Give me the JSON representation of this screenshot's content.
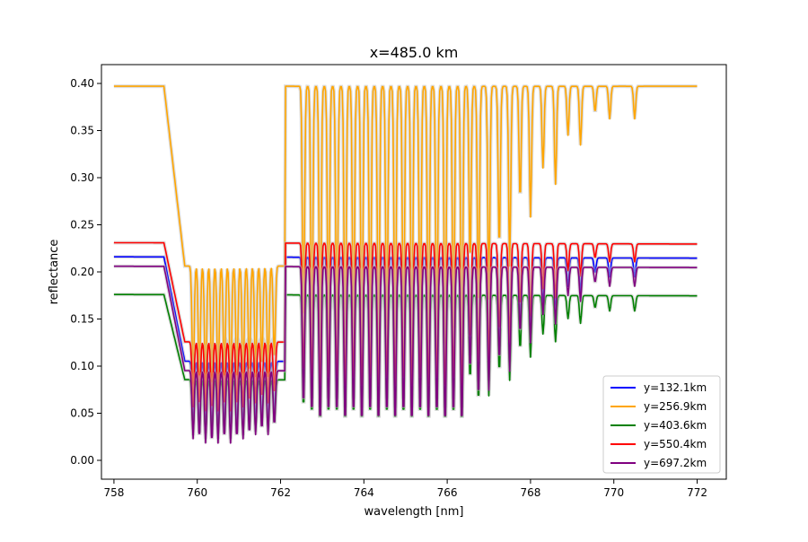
{
  "chart_data": {
    "type": "line",
    "title": "x=485.0 km",
    "xlabel": "wavelength [nm]",
    "ylabel": "reflectance",
    "xlim": [
      757.7,
      772.7
    ],
    "ylim": [
      -0.02,
      0.42
    ],
    "xticks": [
      "758",
      "760",
      "762",
      "764",
      "766",
      "768",
      "770",
      "772"
    ],
    "yticks": [
      "0.00",
      "0.05",
      "0.10",
      "0.15",
      "0.20",
      "0.25",
      "0.30",
      "0.35",
      "0.40"
    ],
    "grid": false,
    "legend_position": "lower right",
    "band_edge": {
      "start": 759.2,
      "end": 759.7
    },
    "absorption_lines": [
      {
        "x": 759.9,
        "d": 0.8
      },
      {
        "x": 760.05,
        "d": 0.8
      },
      {
        "x": 760.2,
        "d": 0.85
      },
      {
        "x": 760.35,
        "d": 0.85
      },
      {
        "x": 760.5,
        "d": 0.85
      },
      {
        "x": 760.65,
        "d": 0.8
      },
      {
        "x": 760.8,
        "d": 0.85
      },
      {
        "x": 760.95,
        "d": 0.8
      },
      {
        "x": 761.1,
        "d": 0.8
      },
      {
        "x": 761.25,
        "d": 0.75
      },
      {
        "x": 761.4,
        "d": 0.75
      },
      {
        "x": 761.55,
        "d": 0.7
      },
      {
        "x": 761.7,
        "d": 0.75
      },
      {
        "x": 761.85,
        "d": 0.65
      },
      {
        "x": 762.55,
        "d": 0.75
      },
      {
        "x": 762.75,
        "d": 0.8
      },
      {
        "x": 762.95,
        "d": 0.85
      },
      {
        "x": 763.15,
        "d": 0.8
      },
      {
        "x": 763.35,
        "d": 0.8
      },
      {
        "x": 763.55,
        "d": 0.85
      },
      {
        "x": 763.75,
        "d": 0.8
      },
      {
        "x": 763.95,
        "d": 0.85
      },
      {
        "x": 764.15,
        "d": 0.8
      },
      {
        "x": 764.35,
        "d": 0.85
      },
      {
        "x": 764.55,
        "d": 0.8
      },
      {
        "x": 764.75,
        "d": 0.85
      },
      {
        "x": 764.95,
        "d": 0.8
      },
      {
        "x": 765.15,
        "d": 0.85
      },
      {
        "x": 765.35,
        "d": 0.8
      },
      {
        "x": 765.55,
        "d": 0.85
      },
      {
        "x": 765.75,
        "d": 0.8
      },
      {
        "x": 765.95,
        "d": 0.85
      },
      {
        "x": 766.15,
        "d": 0.8
      },
      {
        "x": 766.35,
        "d": 0.85
      },
      {
        "x": 766.55,
        "d": 0.55
      },
      {
        "x": 766.75,
        "d": 0.7
      },
      {
        "x": 767.0,
        "d": 0.65
      },
      {
        "x": 767.25,
        "d": 0.5
      },
      {
        "x": 767.5,
        "d": 0.55
      },
      {
        "x": 767.75,
        "d": 0.35
      },
      {
        "x": 768.0,
        "d": 0.4
      },
      {
        "x": 768.3,
        "d": 0.25
      },
      {
        "x": 768.6,
        "d": 0.3
      },
      {
        "x": 768.9,
        "d": 0.15
      },
      {
        "x": 769.2,
        "d": 0.18
      },
      {
        "x": 769.55,
        "d": 0.08
      },
      {
        "x": 769.9,
        "d": 0.1
      },
      {
        "x": 770.5,
        "d": 0.1
      }
    ],
    "series": [
      {
        "name": "y=132.1km",
        "color": "#0000ff",
        "continuum": 0.216,
        "floor": 0.015,
        "slope": -0.0001
      },
      {
        "name": "y=256.9km",
        "color": "#ffa500",
        "continuum": 0.397,
        "floor": 0.05,
        "slope": 0.0
      },
      {
        "name": "y=403.6km",
        "color": "#008000",
        "continuum": 0.176,
        "floor": 0.012,
        "slope": -0.0001
      },
      {
        "name": "y=550.4km",
        "color": "#ff0000",
        "continuum": 0.231,
        "floor": 0.04,
        "slope": -0.0001
      },
      {
        "name": "y=697.2km",
        "color": "#800080",
        "continuum": 0.206,
        "floor": 0.005,
        "slope": -0.0001
      }
    ]
  }
}
